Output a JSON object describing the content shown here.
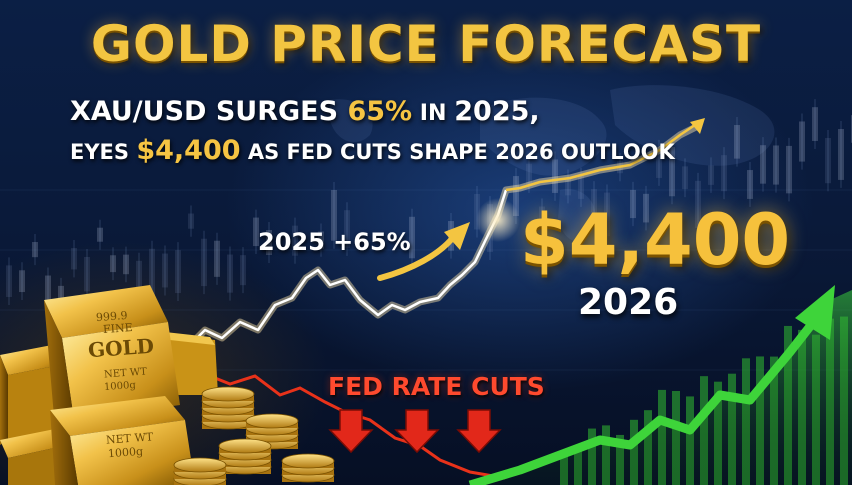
{
  "headline": "GOLD PRICE FORECAST",
  "subheadline_1": {
    "part1": "XAU/USD SURGES ",
    "highlight": "65%",
    "part2": " IN ",
    "part3": "2025,"
  },
  "subheadline_2": {
    "part1": "EYES ",
    "highlight": "$4,400",
    "part2": " AS FED CUTS SHAPE 2026 OUTLOOK"
  },
  "gain_label": "2025 +65%",
  "target_price": "$4,400",
  "target_year": "2026",
  "fed_label": "FED RATE CUTS",
  "gold_bar": {
    "purity": "999.9",
    "fine": "FINE",
    "metal": "GOLD",
    "net_wt_label_1": "NET WT",
    "weight_1": "1000g",
    "net_wt_label_2": "NET WT",
    "weight_2": "1000g"
  },
  "colors": {
    "gold": "#f3c541",
    "fed_red": "#ff4a2e",
    "growth_green": "#3ed43a",
    "background": "#0a1a3a"
  },
  "icons": [
    "gold-bar-icon",
    "gold-coin-stack-icon",
    "down-arrow-icon",
    "up-arrow-icon",
    "candlestick-chart"
  ]
}
